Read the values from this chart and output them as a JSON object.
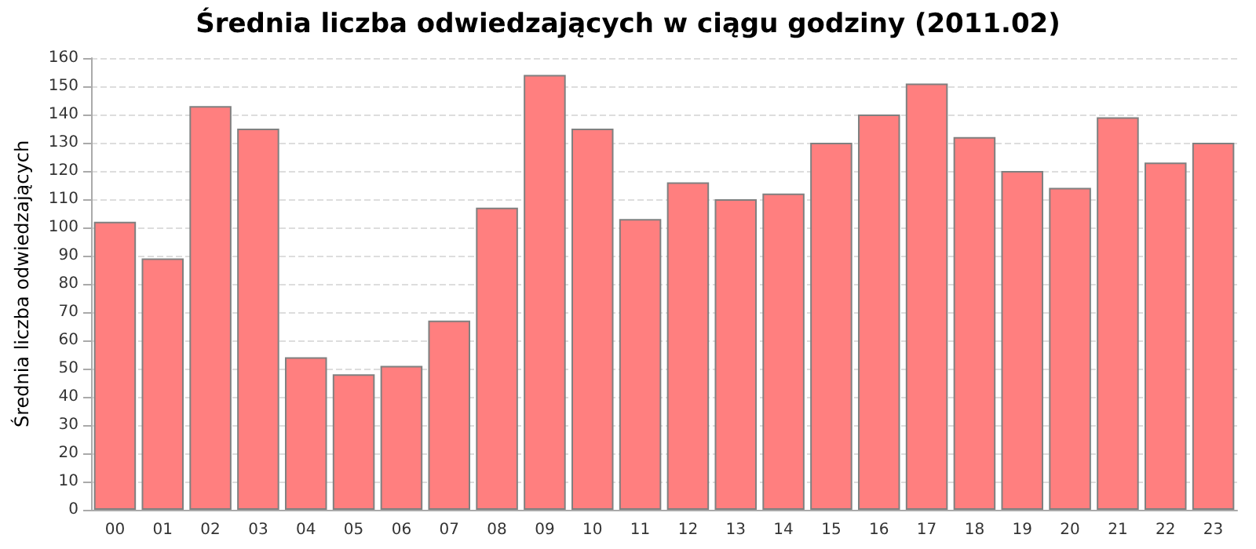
{
  "chart_data": {
    "type": "bar",
    "title": "Średnia liczba odwiedzających w ciągu godziny (2011.02)",
    "ylabel": "Średnia liczba odwiedzających",
    "categories": [
      "00",
      "01",
      "02",
      "03",
      "04",
      "05",
      "06",
      "07",
      "08",
      "09",
      "10",
      "11",
      "12",
      "13",
      "14",
      "15",
      "16",
      "17",
      "18",
      "19",
      "20",
      "21",
      "22",
      "23"
    ],
    "values": [
      102,
      89,
      143,
      135,
      54,
      48,
      51,
      67,
      107,
      154,
      135,
      103,
      116,
      110,
      112,
      130,
      140,
      151,
      132,
      120,
      114,
      139,
      123,
      130
    ],
    "color": "#ff7f7f",
    "ylim": [
      0,
      160
    ],
    "yticks": [
      0,
      10,
      20,
      30,
      40,
      50,
      60,
      70,
      80,
      90,
      100,
      110,
      120,
      130,
      140,
      150,
      160
    ],
    "grid": "y"
  }
}
